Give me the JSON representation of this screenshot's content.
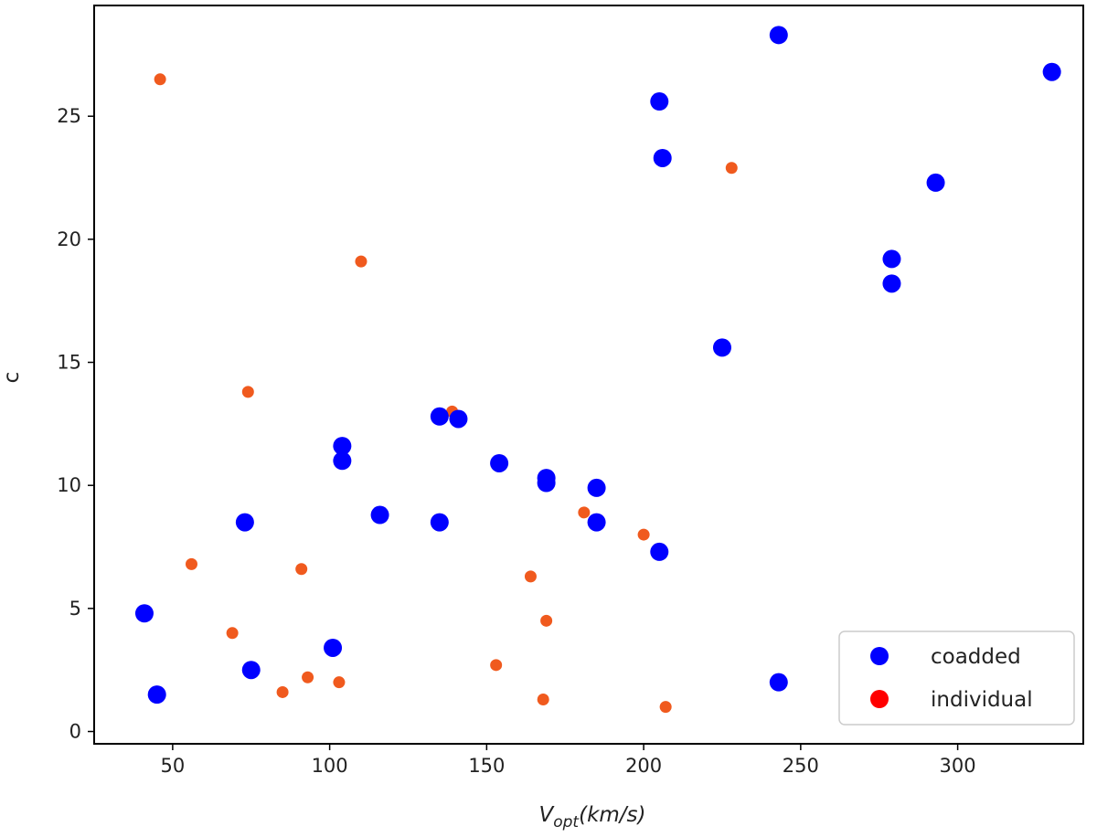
{
  "chart_data": {
    "type": "scatter",
    "xlabel_main": "V",
    "xlabel_sub": "opt",
    "xlabel_unit": "(km/s)",
    "ylabel": "c",
    "xlim": [
      25,
      340
    ],
    "ylim": [
      -0.5,
      29.5
    ],
    "xticks": [
      50,
      100,
      150,
      200,
      250,
      300
    ],
    "yticks": [
      0,
      5,
      10,
      15,
      20,
      25
    ],
    "grid": false,
    "legend_position": "lower right",
    "series": [
      {
        "name": "coadded",
        "color": "#0000ff",
        "legend_color": "#0000ff",
        "marker_size": "large",
        "points": [
          [
            243,
            28.3
          ],
          [
            330,
            26.8
          ],
          [
            205,
            25.6
          ],
          [
            206,
            23.3
          ],
          [
            293,
            22.3
          ],
          [
            279,
            19.2
          ],
          [
            279,
            18.2
          ],
          [
            225,
            15.6
          ],
          [
            135,
            12.8
          ],
          [
            141,
            12.7
          ],
          [
            104,
            11.6
          ],
          [
            104,
            11.0
          ],
          [
            154,
            10.9
          ],
          [
            169,
            10.3
          ],
          [
            169,
            10.1
          ],
          [
            185,
            9.9
          ],
          [
            116,
            8.8
          ],
          [
            73,
            8.5
          ],
          [
            135,
            8.5
          ],
          [
            185,
            8.5
          ],
          [
            205,
            7.3
          ],
          [
            41,
            4.8
          ],
          [
            101,
            3.4
          ],
          [
            75,
            2.5
          ],
          [
            243,
            2.0
          ],
          [
            45,
            1.5
          ]
        ]
      },
      {
        "name": "individual",
        "color": "#f05a1e",
        "legend_color": "#ff0000",
        "marker_size": "small",
        "points": [
          [
            46,
            26.5
          ],
          [
            228,
            22.9
          ],
          [
            110,
            19.1
          ],
          [
            74,
            13.8
          ],
          [
            139,
            13.0
          ],
          [
            181,
            8.9
          ],
          [
            200,
            8.0
          ],
          [
            56,
            6.8
          ],
          [
            91,
            6.6
          ],
          [
            164,
            6.3
          ],
          [
            169,
            4.5
          ],
          [
            69,
            4.0
          ],
          [
            153,
            2.7
          ],
          [
            93,
            2.2
          ],
          [
            103,
            2.0
          ],
          [
            85,
            1.6
          ],
          [
            168,
            1.3
          ],
          [
            207,
            1.0
          ]
        ]
      }
    ]
  }
}
